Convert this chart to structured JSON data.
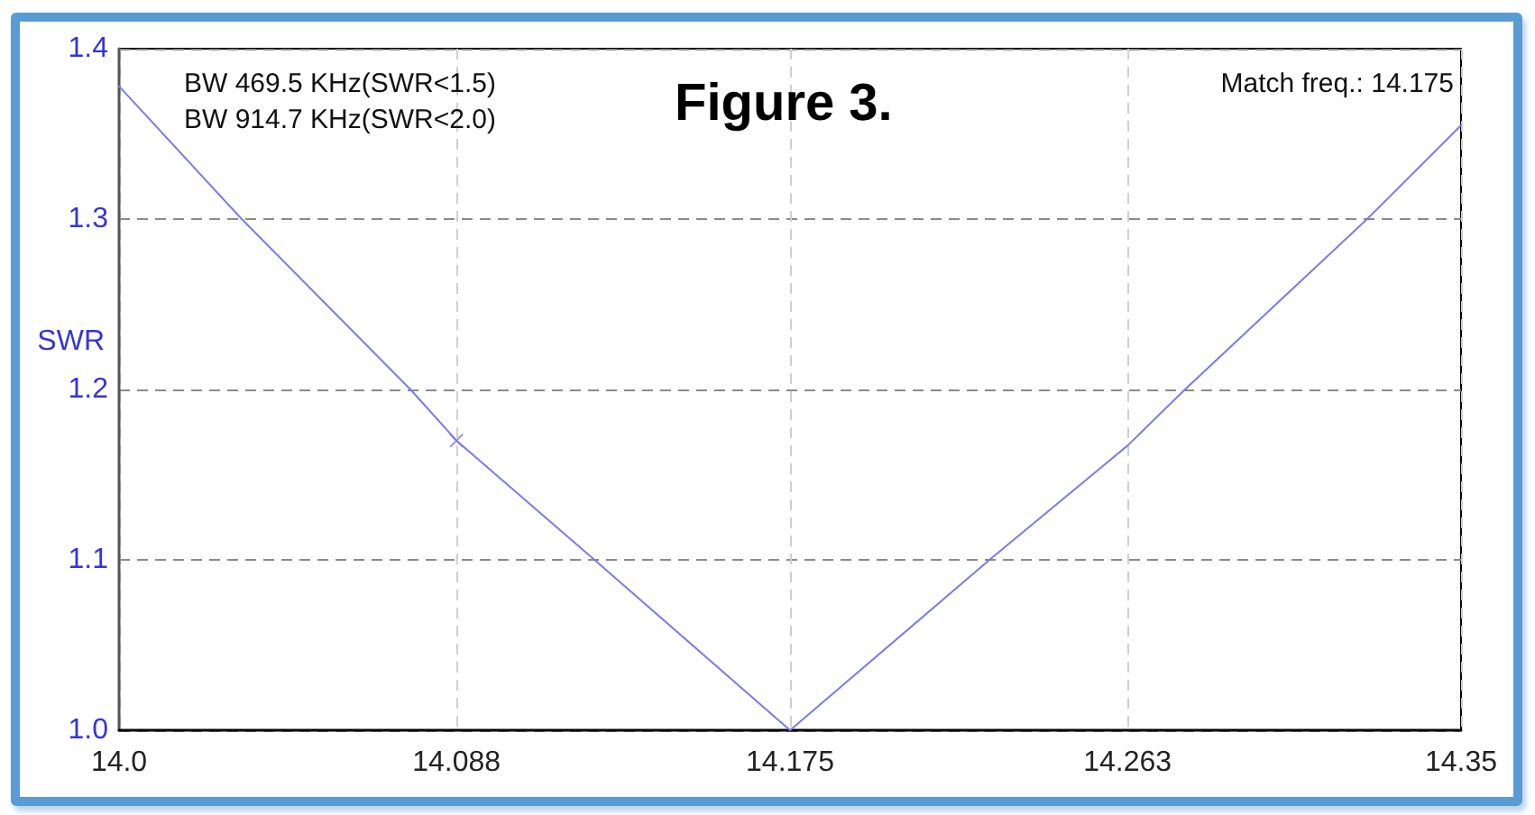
{
  "chart_data": {
    "type": "line",
    "title": "Figure 3.",
    "ylabel": "SWR",
    "annotations": [
      "BW 469.5 KHz(SWR<1.5)",
      "BW 914.7 KHz(SWR<2.0)",
      "Match freq.: 14.175"
    ],
    "xlim": [
      14.0,
      14.35
    ],
    "xticks": [
      {
        "value": 14,
        "label": "14.0"
      },
      14.088,
      14.175,
      14.263,
      14.35
    ],
    "ylim": [
      1.0,
      1.4
    ],
    "yticks": [
      {
        "value": 1,
        "label": "1.0"
      },
      1.1,
      1.2,
      1.3,
      1.4
    ],
    "grid": true,
    "marker": "none",
    "line_style": "solid",
    "series": [
      {
        "color": "#7b7be6",
        "x": [
          14.0,
          14.032,
          14.076,
          14.088,
          14.124,
          14.175,
          14.227,
          14.263,
          14.278,
          14.3255,
          14.35
        ],
        "values": [
          1.378,
          1.3,
          1.2,
          1.17,
          1.1,
          1.0,
          1.1,
          1.167,
          1.2,
          1.3,
          1.355
        ]
      },
      {
        "type": "scatter",
        "color": "#7b7be6",
        "x": [
          14.088
        ],
        "values": [
          1.17
        ],
        "marker": "cross"
      }
    ]
  }
}
